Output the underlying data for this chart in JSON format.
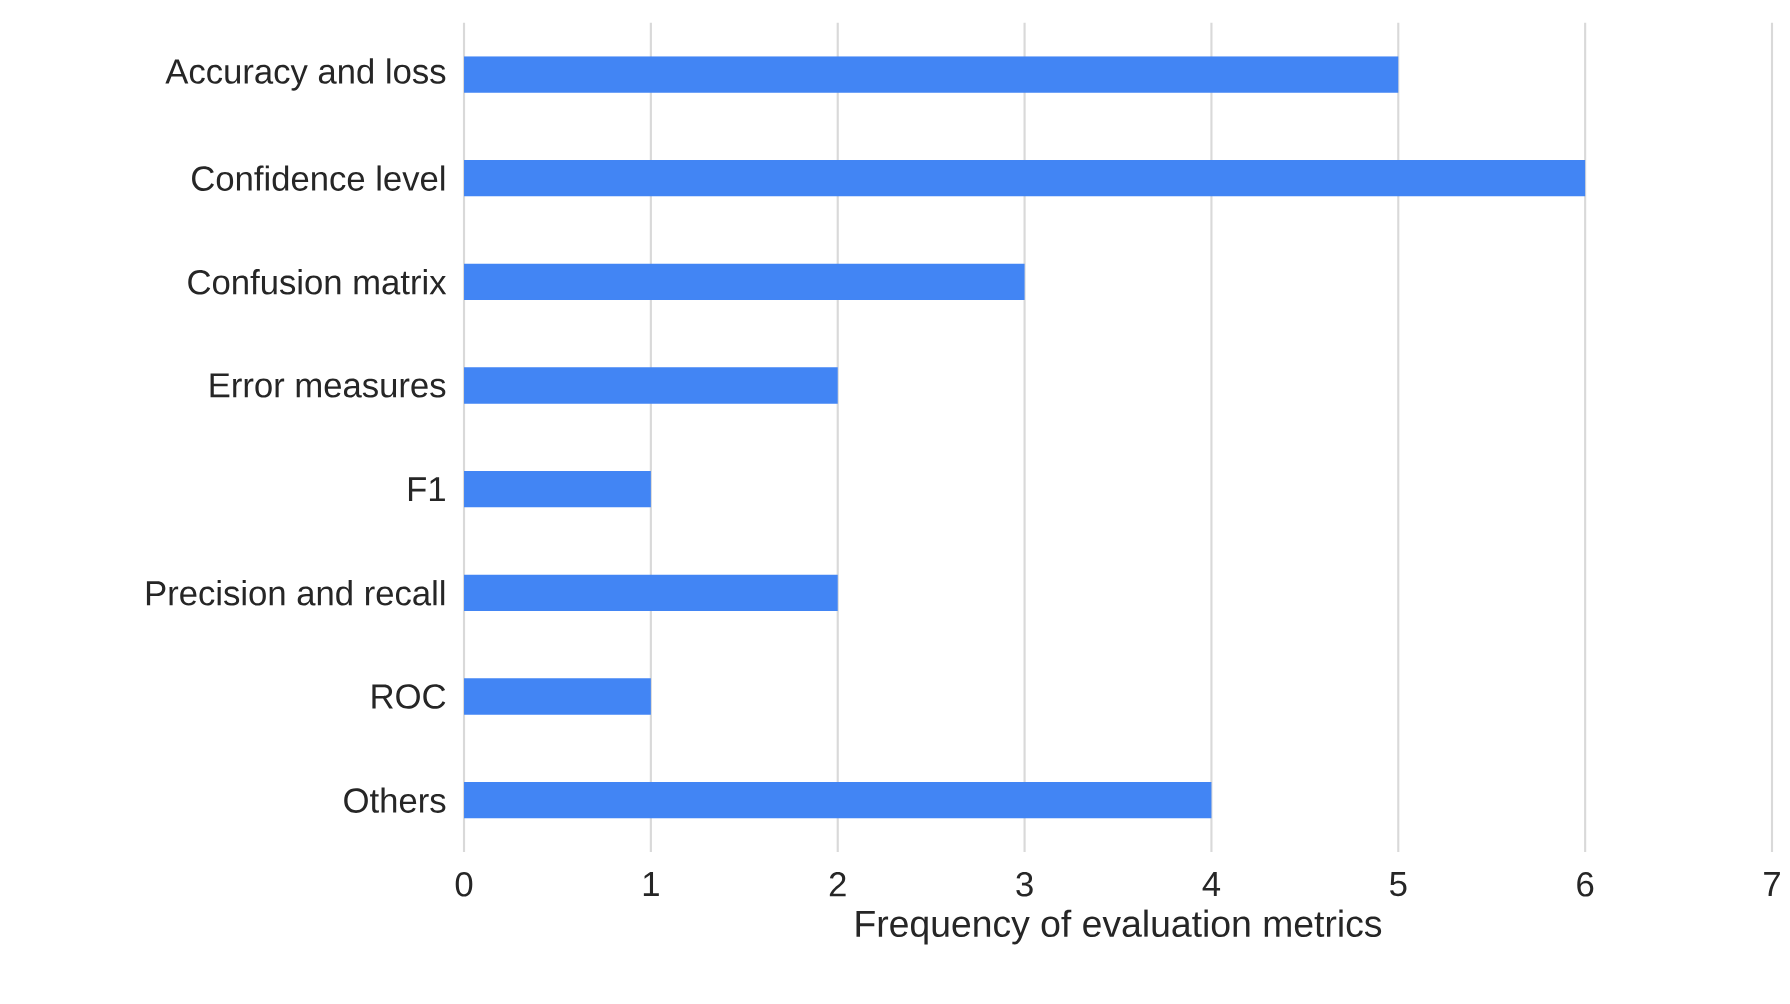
{
  "chart_data": {
    "type": "bar",
    "orientation": "horizontal",
    "xlabel": "Frequency of evaluation metrics",
    "categories": [
      "Accuracy and loss",
      "Confidence level",
      "Confusion matrix",
      "Error measures",
      "F1",
      "Precision and recall",
      "ROC",
      "Others"
    ],
    "values": [
      5,
      6,
      3,
      2,
      1,
      2,
      1,
      4
    ],
    "color": "#4285f4",
    "xlim": [
      0,
      7
    ],
    "xticks": [
      0,
      1,
      2,
      3,
      4,
      5,
      6,
      7
    ],
    "grid": "x"
  }
}
